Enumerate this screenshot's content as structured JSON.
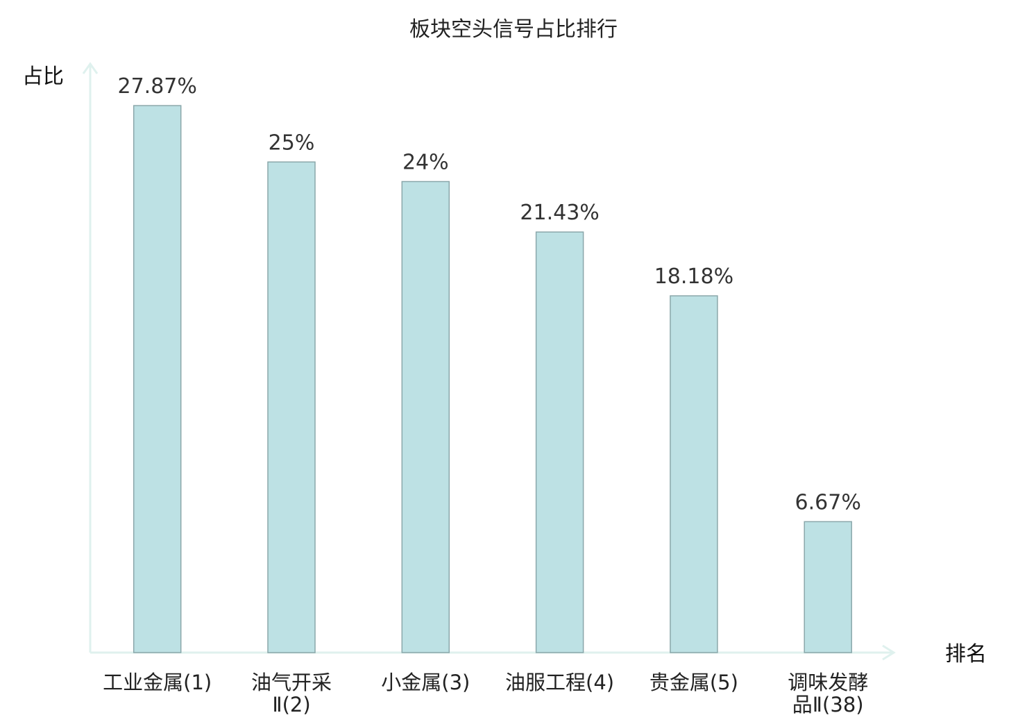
{
  "chart_data": {
    "type": "bar",
    "title": "板块空头信号占比排行",
    "ylabel": "占比",
    "xlabel": "排名",
    "categories": [
      [
        "工业金属(1)"
      ],
      [
        "油气开采",
        "Ⅱ(2)"
      ],
      [
        "小金属(3)"
      ],
      [
        "油服工程(4)"
      ],
      [
        "贵金属(5)"
      ],
      [
        "调味发酵",
        "品Ⅱ(38)"
      ]
    ],
    "values": [
      27.87,
      25,
      24,
      21.43,
      18.18,
      6.67
    ],
    "value_labels": [
      "27.87%",
      "25%",
      "24%",
      "21.43%",
      "18.18%",
      "6.67%"
    ],
    "highlight_index": 5,
    "ylim": [
      0,
      30
    ],
    "grid": false,
    "colors": {
      "bar_fill": "#bde1e4",
      "bar_stroke": "#8aa7aa",
      "axis": "#dff1ee",
      "label_text": "#222222",
      "value_text": "#333333",
      "highlight_text": "#e02020"
    }
  }
}
